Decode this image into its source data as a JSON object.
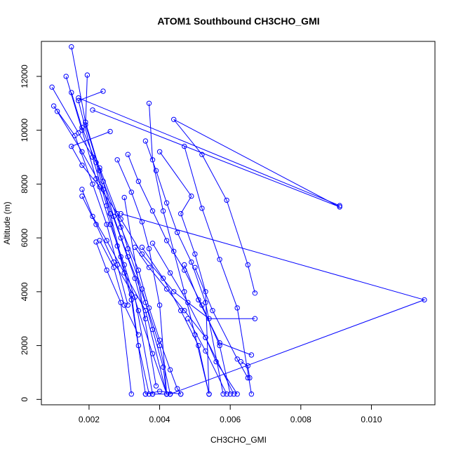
{
  "chart_data": {
    "type": "line",
    "title": "ATOM1 Southbound CH3CHO_GMI",
    "xlabel": "CH3CHO_GMI",
    "ylabel": "Altitude (m)",
    "xlim": [
      0.00065,
      0.0118
    ],
    "ylim": [
      -200,
      13300
    ],
    "xticks": [
      0.002,
      0.004,
      0.006,
      0.008,
      0.01
    ],
    "xtick_labels": [
      "0.002",
      "0.004",
      "0.006",
      "0.008",
      "0.010"
    ],
    "yticks": [
      0,
      2000,
      4000,
      6000,
      8000,
      10000,
      12000
    ],
    "ytick_labels": [
      "0",
      "2000",
      "4000",
      "6000",
      "8000",
      "10000",
      "12000"
    ],
    "grid": false,
    "legend": "none",
    "series_color": "#0000FF",
    "series": [
      {
        "x": [
          0.0015,
          0.0019,
          0.0024,
          0.0029,
          0.0034,
          0.0037,
          0.004,
          0.0043,
          0.0045,
          0.0046
        ],
        "y": [
          13100,
          10300,
          8100,
          6400,
          4800,
          3400,
          2200,
          1100,
          400,
          200
        ]
      },
      {
        "x": [
          0.00095,
          0.0017,
          0.0023,
          0.0028,
          0.0031,
          0.0035,
          0.0038,
          0.0041,
          0.0042
        ],
        "y": [
          11600,
          9900,
          8600,
          6900,
          5600,
          4100,
          2600,
          1200,
          200
        ]
      },
      {
        "x": [
          0.00135,
          0.0018,
          0.0022,
          0.0026,
          0.003,
          0.0034,
          0.0038,
          0.0042
        ],
        "y": [
          12000,
          10000,
          8200,
          6500,
          5000,
          3300,
          1700,
          200
        ]
      },
      {
        "x": [
          0.00195,
          0.0019,
          0.0023,
          0.0027,
          0.0031,
          0.0036,
          0.004,
          0.0043
        ],
        "y": [
          12050,
          10200,
          8500,
          6800,
          5300,
          3600,
          2000,
          200
        ]
      },
      {
        "x": [
          0.0024,
          0.0017,
          0.0021,
          0.0025,
          0.0028,
          0.0032,
          0.0036
        ],
        "y": [
          11450,
          11100,
          9000,
          7200,
          5700,
          3700,
          200
        ]
      },
      {
        "x": [
          0.0015,
          0.0018,
          0.0022,
          0.0026,
          0.0029,
          0.0032,
          0.0034,
          0.0037
        ],
        "y": [
          11400,
          10100,
          8800,
          6900,
          5300,
          3900,
          2000,
          200
        ]
      },
      {
        "x": [
          0.0037,
          0.0038,
          0.0041,
          0.0044,
          0.0047,
          0.005,
          0.0054
        ],
        "y": [
          11000,
          8900,
          7000,
          5500,
          4000,
          2400,
          200
        ]
      },
      {
        "x": [
          0.001,
          0.0016,
          0.0021,
          0.0025,
          0.0028,
          0.0031
        ],
        "y": [
          10900,
          9800,
          8000,
          6500,
          5000,
          3500
        ]
      },
      {
        "x": [
          0.0011,
          0.0018,
          0.0024,
          0.0029,
          0.0033,
          0.0036
        ],
        "y": [
          10700,
          9200,
          7800,
          6000,
          4500,
          3000
        ]
      },
      {
        "x": [
          0.0021,
          0.0091,
          0.0044,
          0.0052,
          0.0059,
          0.0065,
          0.0067
        ],
        "y": [
          10750,
          7150,
          10400,
          9100,
          7400,
          5000,
          3950
        ]
      },
      {
        "x": [
          0.0017,
          0.0091
        ],
        "y": [
          11200,
          7200
        ]
      },
      {
        "x": [
          0.0026,
          0.0015,
          0.0018,
          0.0023,
          0.0029,
          0.0035,
          0.0044,
          0.0054,
          0.0067
        ],
        "y": [
          9950,
          9400,
          8700,
          7900,
          6700,
          5400,
          4000,
          3000,
          3000
        ]
      },
      {
        "x": [
          0.0036,
          0.0039,
          0.0042,
          0.0045,
          0.0049,
          0.0053,
          0.0058
        ],
        "y": [
          9600,
          8500,
          7300,
          6200,
          5100,
          3600,
          200
        ]
      },
      {
        "x": [
          0.0031,
          0.0034,
          0.0038,
          0.0042,
          0.0047,
          0.0052,
          0.0057,
          0.006
        ],
        "y": [
          9100,
          8100,
          7000,
          5900,
          4800,
          3500,
          2000,
          200
        ]
      },
      {
        "x": [
          0.004,
          0.0049,
          0.0046,
          0.005,
          0.0053,
          0.0054
        ],
        "y": [
          9200,
          7550,
          6900,
          5400,
          4000,
          200
        ]
      },
      {
        "x": [
          0.0047,
          0.0052,
          0.0057,
          0.0062,
          0.0066
        ],
        "y": [
          9400,
          7100,
          5200,
          3400,
          200
        ]
      },
      {
        "x": [
          0.0028,
          0.0032,
          0.0035,
          0.0037,
          0.004,
          0.0042
        ],
        "y": [
          8900,
          7700,
          6600,
          5600,
          3500,
          200
        ]
      },
      {
        "x": [
          0.0018,
          0.0021,
          0.0025,
          0.003,
          0.0036,
          0.0042
        ],
        "y": [
          7800,
          6800,
          5900,
          4700,
          3300,
          200
        ]
      },
      {
        "x": [
          0.0018,
          0.0022,
          0.0027,
          0.0033,
          0.0038
        ],
        "y": [
          7550,
          6500,
          5100,
          3800,
          200
        ]
      },
      {
        "x": [
          0.0022,
          0.0025,
          0.0029,
          0.0032
        ],
        "y": [
          5850,
          4800,
          3600,
          200
        ]
      },
      {
        "x": [
          0.0023,
          0.0027,
          0.003,
          0.0034
        ],
        "y": [
          5900,
          4900,
          3500,
          2400
        ]
      },
      {
        "x": [
          0.0033,
          0.0037,
          0.0042,
          0.0047,
          0.0053,
          0.0056,
          0.0062
        ],
        "y": [
          5650,
          4900,
          4100,
          3300,
          2300,
          1400,
          200
        ]
      },
      {
        "x": [
          0.0035,
          0.0041,
          0.0046,
          0.0051,
          0.0054
        ],
        "y": [
          5650,
          4500,
          3300,
          2000,
          200
        ]
      },
      {
        "x": [
          0.0038,
          0.0043,
          0.0048,
          0.0053,
          0.0061
        ],
        "y": [
          5800,
          4700,
          3600,
          2300,
          200
        ]
      },
      {
        "x": [
          0.0047,
          0.0051,
          0.0057,
          0.0066
        ],
        "y": [
          5000,
          3700,
          2100,
          1650
        ]
      },
      {
        "x": [
          0.005,
          0.0055,
          0.0062,
          0.0065
        ],
        "y": [
          4900,
          3300,
          1500,
          800
        ]
      },
      {
        "x": [
          0.0038,
          0.0043
        ],
        "y": [
          200,
          200
        ]
      },
      {
        "x": [
          0.0036,
          0.004,
          0.0046
        ],
        "y": [
          200,
          300,
          200
        ]
      },
      {
        "x": [
          0.003,
          0.0039
        ],
        "y": [
          7500,
          500
        ]
      },
      {
        "x": [
          0.0048,
          0.0053,
          0.0059
        ],
        "y": [
          3000,
          1800,
          200
        ]
      },
      {
        "x": [
          0.0063,
          0.0065,
          0.00655
        ],
        "y": [
          1400,
          1250,
          800
        ]
      },
      {
        "x": [
          0.0029,
          0.0115,
          0.0043
        ],
        "y": [
          6900,
          3700,
          200
        ]
      }
    ]
  }
}
